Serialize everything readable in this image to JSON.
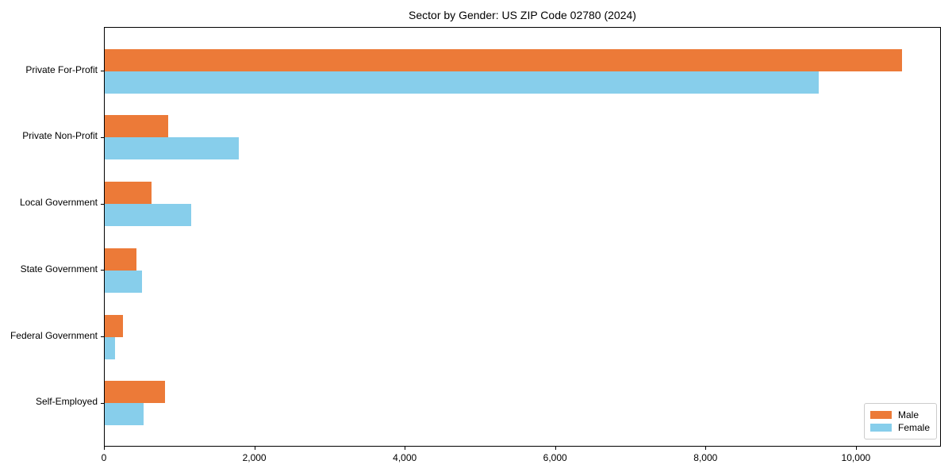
{
  "title": "Sector by Gender: US ZIP Code 02780 (2024)",
  "chart_data": {
    "type": "bar",
    "orientation": "horizontal",
    "title": "Sector by Gender: US ZIP Code 02780 (2024)",
    "categories": [
      "Private For-Profit",
      "Private Non-Profit",
      "Local Government",
      "State Government",
      "Federal Government",
      "Self-Employed"
    ],
    "series": [
      {
        "name": "Male",
        "color": "#EC7A38",
        "values": [
          10600,
          845,
          620,
          425,
          240,
          805
        ]
      },
      {
        "name": "Female",
        "color": "#87CEEB",
        "values": [
          9490,
          1780,
          1150,
          495,
          140,
          520
        ]
      }
    ],
    "xlabel": "",
    "ylabel": "",
    "xlim": [
      0,
      11130
    ],
    "x_ticks": [
      0,
      2000,
      4000,
      6000,
      8000,
      10000
    ],
    "x_tick_labels": [
      "0",
      "2,000",
      "4,000",
      "6,000",
      "8,000",
      "10,000"
    ],
    "grid": false,
    "legend": {
      "position": "lower right",
      "entries": [
        {
          "label": "Male",
          "color": "#EC7A38"
        },
        {
          "label": "Female",
          "color": "#87CEEB"
        }
      ]
    }
  }
}
